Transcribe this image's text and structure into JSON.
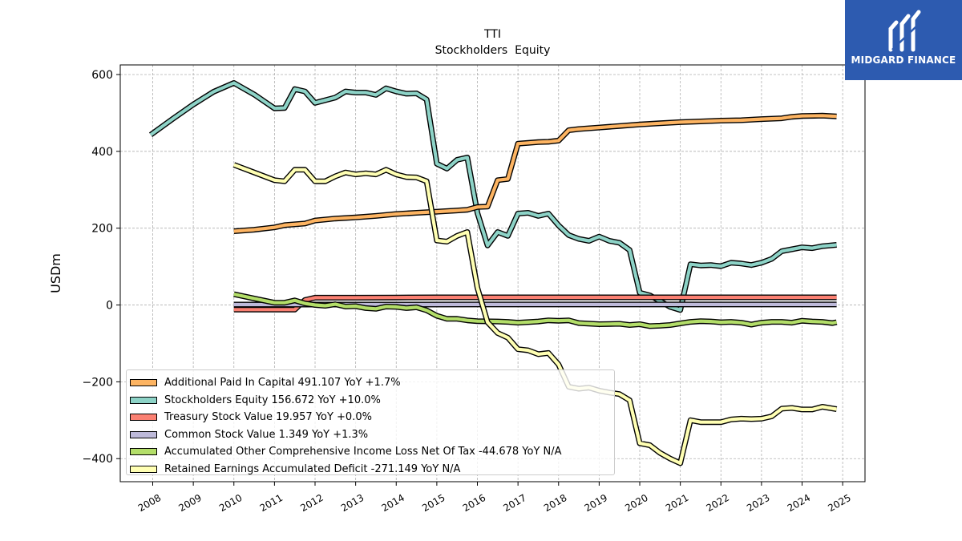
{
  "chart_data": {
    "type": "line",
    "title": "TTI",
    "subtitle": "Stockholders  Equity",
    "ylabel": "USDm",
    "ylim": [
      -460,
      625
    ],
    "xlim": [
      2007.2,
      2025.55
    ],
    "x_ticks": [
      "2008",
      "2009",
      "2010",
      "2011",
      "2012",
      "2013",
      "2014",
      "2015",
      "2016",
      "2017",
      "2018",
      "2019",
      "2020",
      "2021",
      "2022",
      "2023",
      "2024",
      "2025"
    ],
    "y_ticks": [
      "600",
      "400",
      "200",
      "0",
      "−200",
      "−400"
    ],
    "grid": true,
    "legend_position": "lower-left",
    "series": [
      {
        "name": "Stockholders Equity",
        "legend_label": "Stockholders Equity  156.672 YoY +10.0%",
        "color": "#8dd3c7",
        "points": [
          [
            2007.95,
            443
          ],
          [
            2008.5,
            485
          ],
          [
            2009,
            522
          ],
          [
            2009.5,
            555
          ],
          [
            2010,
            578
          ],
          [
            2010.5,
            548
          ],
          [
            2011,
            512
          ],
          [
            2011.25,
            513
          ],
          [
            2011.5,
            562
          ],
          [
            2011.75,
            556
          ],
          [
            2012,
            526
          ],
          [
            2012.5,
            540
          ],
          [
            2012.75,
            556
          ],
          [
            2013,
            553
          ],
          [
            2013.25,
            553
          ],
          [
            2013.5,
            547
          ],
          [
            2013.75,
            564
          ],
          [
            2014,
            556
          ],
          [
            2014.25,
            550
          ],
          [
            2014.5,
            551
          ],
          [
            2014.75,
            535
          ],
          [
            2015,
            368
          ],
          [
            2015.25,
            355
          ],
          [
            2015.5,
            378
          ],
          [
            2015.75,
            384
          ],
          [
            2016,
            240
          ],
          [
            2016.25,
            155
          ],
          [
            2016.5,
            190
          ],
          [
            2016.75,
            180
          ],
          [
            2017,
            238
          ],
          [
            2017.25,
            240
          ],
          [
            2017.5,
            232
          ],
          [
            2017.75,
            238
          ],
          [
            2018,
            207
          ],
          [
            2018.25,
            182
          ],
          [
            2018.5,
            172
          ],
          [
            2018.75,
            167
          ],
          [
            2019,
            178
          ],
          [
            2019.25,
            167
          ],
          [
            2019.5,
            162
          ],
          [
            2019.75,
            143
          ],
          [
            2020,
            32
          ],
          [
            2020.25,
            25
          ],
          [
            2020.5,
            10
          ],
          [
            2020.75,
            -5
          ],
          [
            2021,
            -13
          ],
          [
            2021.25,
            106
          ],
          [
            2021.5,
            103
          ],
          [
            2021.75,
            104
          ],
          [
            2022,
            101
          ],
          [
            2022.25,
            110
          ],
          [
            2022.5,
            108
          ],
          [
            2022.75,
            104
          ],
          [
            2023,
            110
          ],
          [
            2023.25,
            120
          ],
          [
            2023.5,
            140
          ],
          [
            2023.75,
            145
          ],
          [
            2024,
            150
          ],
          [
            2024.25,
            148
          ],
          [
            2024.5,
            153
          ],
          [
            2024.85,
            156.672
          ]
        ]
      },
      {
        "name": "Additional Paid In Capital",
        "legend_label": "Additional Paid In Capital  491.107 YoY +1.7%",
        "color": "#fdb462",
        "points": [
          [
            2010,
            192
          ],
          [
            2010.5,
            196
          ],
          [
            2011,
            202
          ],
          [
            2011.25,
            208
          ],
          [
            2011.5,
            210
          ],
          [
            2011.75,
            212
          ],
          [
            2012,
            220
          ],
          [
            2012.5,
            225
          ],
          [
            2013,
            228
          ],
          [
            2013.5,
            232
          ],
          [
            2014,
            237
          ],
          [
            2014.5,
            240
          ],
          [
            2015,
            243
          ],
          [
            2015.5,
            246
          ],
          [
            2015.75,
            248
          ],
          [
            2016,
            255
          ],
          [
            2016.25,
            256
          ],
          [
            2016.5,
            325
          ],
          [
            2016.75,
            328
          ],
          [
            2017,
            420
          ],
          [
            2017.25,
            422
          ],
          [
            2017.5,
            424
          ],
          [
            2017.75,
            425
          ],
          [
            2018,
            428
          ],
          [
            2018.25,
            455
          ],
          [
            2018.5,
            458
          ],
          [
            2019,
            462
          ],
          [
            2019.5,
            466
          ],
          [
            2020,
            470
          ],
          [
            2020.5,
            473
          ],
          [
            2021,
            476
          ],
          [
            2021.5,
            478
          ],
          [
            2022,
            480
          ],
          [
            2022.5,
            481
          ],
          [
            2023,
            484
          ],
          [
            2023.5,
            486
          ],
          [
            2023.75,
            490
          ],
          [
            2024,
            492
          ],
          [
            2024.5,
            493
          ],
          [
            2024.85,
            491.107
          ]
        ]
      },
      {
        "name": "Treasury Stock Value",
        "legend_label": "Treasury Stock Value  19.957 YoY +0.0%",
        "color": "#fb8072",
        "points": [
          [
            2010,
            -12
          ],
          [
            2010.5,
            -12
          ],
          [
            2011,
            -12
          ],
          [
            2011.5,
            -12
          ],
          [
            2011.75,
            13
          ],
          [
            2012,
            19
          ],
          [
            2013,
            19
          ],
          [
            2014,
            19.5
          ],
          [
            2015,
            19.8
          ],
          [
            2016,
            19.9
          ],
          [
            2017,
            19.9
          ],
          [
            2018,
            19.957
          ],
          [
            2019,
            19.957
          ],
          [
            2020,
            19.957
          ],
          [
            2021,
            19.957
          ],
          [
            2022,
            19.957
          ],
          [
            2023,
            19.957
          ],
          [
            2024,
            19.957
          ],
          [
            2024.85,
            19.957
          ]
        ]
      },
      {
        "name": "Common Stock Value",
        "legend_label": "Common Stock Value  1.349 YoY +1.3%",
        "color": "#bebada",
        "points": [
          [
            2010,
            1.1
          ],
          [
            2012,
            1.15
          ],
          [
            2014,
            1.2
          ],
          [
            2016,
            1.25
          ],
          [
            2018,
            1.3
          ],
          [
            2020,
            1.32
          ],
          [
            2022,
            1.33
          ],
          [
            2024,
            1.34
          ],
          [
            2024.85,
            1.349
          ]
        ]
      },
      {
        "name": "Accumulated Other Comprehensive Income Loss Net Of Tax",
        "legend_label": "Accumulated Other Comprehensive Income Loss Net Of Tax  -44.678 YoY N/A",
        "color": "#b3de69",
        "points": [
          [
            2010,
            28
          ],
          [
            2010.5,
            17
          ],
          [
            2011,
            6
          ],
          [
            2011.25,
            6
          ],
          [
            2011.5,
            12
          ],
          [
            2011.75,
            4
          ],
          [
            2012,
            0
          ],
          [
            2012.25,
            -2
          ],
          [
            2012.5,
            2
          ],
          [
            2012.75,
            -4
          ],
          [
            2013,
            -3
          ],
          [
            2013.25,
            -8
          ],
          [
            2013.5,
            -10
          ],
          [
            2013.75,
            -4
          ],
          [
            2014,
            -5
          ],
          [
            2014.25,
            -8
          ],
          [
            2014.5,
            -6
          ],
          [
            2014.75,
            -14
          ],
          [
            2015,
            -28
          ],
          [
            2015.25,
            -36
          ],
          [
            2015.5,
            -36
          ],
          [
            2015.75,
            -40
          ],
          [
            2016,
            -42
          ],
          [
            2016.5,
            -43
          ],
          [
            2016.75,
            -44
          ],
          [
            2017,
            -46
          ],
          [
            2017.5,
            -43
          ],
          [
            2017.75,
            -40
          ],
          [
            2018,
            -41
          ],
          [
            2018.25,
            -40
          ],
          [
            2018.5,
            -47
          ],
          [
            2019,
            -50
          ],
          [
            2019.5,
            -49
          ],
          [
            2019.75,
            -52
          ],
          [
            2020,
            -50
          ],
          [
            2020.25,
            -55
          ],
          [
            2020.5,
            -54
          ],
          [
            2020.75,
            -52
          ],
          [
            2021,
            -48
          ],
          [
            2021.25,
            -44
          ],
          [
            2021.5,
            -42
          ],
          [
            2021.75,
            -43
          ],
          [
            2022,
            -45
          ],
          [
            2022.25,
            -44
          ],
          [
            2022.5,
            -46
          ],
          [
            2022.75,
            -51
          ],
          [
            2023,
            -46
          ],
          [
            2023.25,
            -44
          ],
          [
            2023.5,
            -44
          ],
          [
            2023.75,
            -46
          ],
          [
            2024,
            -41
          ],
          [
            2024.25,
            -43
          ],
          [
            2024.5,
            -44
          ],
          [
            2024.75,
            -47
          ],
          [
            2024.85,
            -44.678
          ]
        ]
      },
      {
        "name": "Retained Earnings Accumulated Deficit",
        "legend_label": "Retained Earnings Accumulated Deficit  -271.149 YoY N/A",
        "color": "#ffffb3",
        "points": [
          [
            2010,
            365
          ],
          [
            2010.5,
            345
          ],
          [
            2011,
            325
          ],
          [
            2011.25,
            322
          ],
          [
            2011.5,
            352
          ],
          [
            2011.75,
            352
          ],
          [
            2012,
            322
          ],
          [
            2012.25,
            322
          ],
          [
            2012.5,
            335
          ],
          [
            2012.75,
            345
          ],
          [
            2013,
            340
          ],
          [
            2013.25,
            343
          ],
          [
            2013.5,
            340
          ],
          [
            2013.75,
            352
          ],
          [
            2014,
            340
          ],
          [
            2014.25,
            333
          ],
          [
            2014.5,
            332
          ],
          [
            2014.75,
            322
          ],
          [
            2015,
            168
          ],
          [
            2015.25,
            165
          ],
          [
            2015.5,
            180
          ],
          [
            2015.75,
            190
          ],
          [
            2016,
            45
          ],
          [
            2016.25,
            -45
          ],
          [
            2016.5,
            -73
          ],
          [
            2016.75,
            -85
          ],
          [
            2017,
            -115
          ],
          [
            2017.25,
            -118
          ],
          [
            2017.5,
            -128
          ],
          [
            2017.75,
            -125
          ],
          [
            2018,
            -155
          ],
          [
            2018.25,
            -213
          ],
          [
            2018.5,
            -218
          ],
          [
            2018.75,
            -215
          ],
          [
            2019,
            -223
          ],
          [
            2019.25,
            -228
          ],
          [
            2019.5,
            -232
          ],
          [
            2019.75,
            -248
          ],
          [
            2020,
            -360
          ],
          [
            2020.25,
            -365
          ],
          [
            2020.5,
            -385
          ],
          [
            2020.75,
            -400
          ],
          [
            2021,
            -412
          ],
          [
            2021.25,
            -300
          ],
          [
            2021.5,
            -305
          ],
          [
            2021.75,
            -305
          ],
          [
            2022,
            -305
          ],
          [
            2022.25,
            -298
          ],
          [
            2022.5,
            -296
          ],
          [
            2022.75,
            -297
          ],
          [
            2023,
            -296
          ],
          [
            2023.25,
            -290
          ],
          [
            2023.5,
            -270
          ],
          [
            2023.75,
            -268
          ],
          [
            2024,
            -272
          ],
          [
            2024.25,
            -272
          ],
          [
            2024.5,
            -265
          ],
          [
            2024.85,
            -271.149
          ]
        ]
      }
    ]
  },
  "legend_order": [
    "Additional Paid In Capital",
    "Stockholders Equity",
    "Treasury Stock Value",
    "Common Stock Value",
    "Accumulated Other Comprehensive Income Loss Net Of Tax",
    "Retained Earnings Accumulated Deficit"
  ],
  "logo": {
    "text": "MIDGARD FINANCE",
    "background": "#2d5bb0"
  }
}
